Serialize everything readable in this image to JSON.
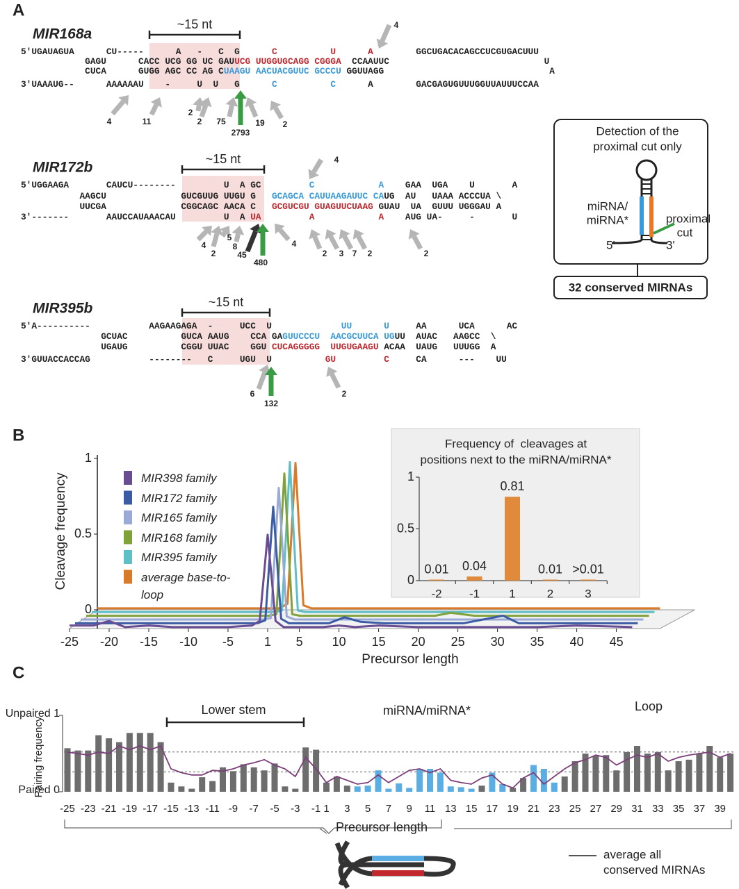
{
  "panel_labels": [
    "A",
    "B",
    "C"
  ],
  "panel_a": {
    "bracket_label": "~15 nt",
    "structures": [
      {
        "name": "MIR168a",
        "lines": [
          [
            {
              "text": "5'UGAUAGUA      CU-----      A   -   C  G      "
            },
            {
              "text": "C          U      A",
              "color": "#c1272d"
            },
            {
              "text": "        GGCUGACACAGCCUCGUGACUUU"
            }
          ],
          [
            {
              "text": "            GAGU      CACC UCG GG UC GAU"
            },
            {
              "text": "UCG UUGGUGCAGG CGGGA",
              "color": "#c1272d"
            },
            {
              "text": "  CCAAUUC                             U"
            }
          ],
          [
            {
              "text": "            CUCA      GUGG AGC CC AG C"
            },
            {
              "text": "UAAGU AACUACGUUC GCCCU",
              "color": "#3a9ad9"
            },
            {
              "text": " GGUUAGG                               A"
            }
          ],
          [
            {
              "text": "3'UAAAUG--      AAAAAAU    -     U  U   G      "
            },
            {
              "text": "C          C",
              "color": "#3a9ad9"
            },
            {
              "text": "      A        GACGAGUGUUUGGUUAUUUCCAA"
            }
          ]
        ],
        "arrows": [
          {
            "count": 4,
            "color": "#b5b5b5"
          },
          {
            "count": 4,
            "color": "#b5b5b5"
          },
          {
            "count": 11,
            "color": "#b5b5b5"
          },
          {
            "count": 2,
            "color": "#b5b5b5"
          },
          {
            "count": 2,
            "color": "#b5b5b5"
          },
          {
            "count": 75,
            "color": "#b5b5b5"
          },
          {
            "count": 2793,
            "color": "#3a9b45"
          },
          {
            "count": 19,
            "color": "#b5b5b5"
          },
          {
            "count": 2,
            "color": "#b5b5b5"
          }
        ]
      },
      {
        "name": "MIR172b",
        "lines": [
          [
            {
              "text": "5'UGGAAGA       CAUCU--------         U  A GC         "
            },
            {
              "text": "C            A",
              "color": "#3a9ad9"
            },
            {
              "text": "    GAA  UGA    U       A"
            }
          ],
          [
            {
              "text": "           AAGCU              GUCGUUG UUGU G   "
            },
            {
              "text": "GCAGCA CAUUAAGAUUC CA",
              "color": "#3a9ad9"
            },
            {
              "text": "UG  AU   UAAA ACCCUA \\"
            }
          ],
          [
            {
              "text": "           UUCGA              CGGCAGC AACA C   "
            },
            {
              "text": "GCGUCGU GUAGUUCUAAG",
              "color": "#c1272d"
            },
            {
              "text": " GUAU  UA  GUUU UGGGAU A"
            }
          ],
          [
            {
              "text": "3'-------       AAUCCAUAAACAU         U  A "
            },
            {
              "text": "UA         A            A",
              "color": "#c1272d"
            },
            {
              "text": "    AUG UA-     -       U"
            }
          ]
        ],
        "arrows": [
          {
            "count": 4,
            "color": "#b5b5b5"
          },
          {
            "count": 4,
            "color": "#b5b5b5"
          },
          {
            "count": 2,
            "color": "#b5b5b5"
          },
          {
            "count": 5,
            "color": "#b5b5b5"
          },
          {
            "count": 8,
            "color": "#b5b5b5"
          },
          {
            "count": 45,
            "color": "#333333"
          },
          {
            "count": 480,
            "color": "#3a9b45"
          },
          {
            "count": 4,
            "color": "#b5b5b5"
          },
          {
            "count": 2,
            "color": "#b5b5b5"
          },
          {
            "count": 3,
            "color": "#b5b5b5"
          },
          {
            "count": 7,
            "color": "#b5b5b5"
          },
          {
            "count": 2,
            "color": "#b5b5b5"
          },
          {
            "count": 2,
            "color": "#b5b5b5"
          }
        ]
      },
      {
        "name": "MIR395b",
        "lines": [
          [
            {
              "text": "5'A----------           AAGAAGAGA  -     UCC  U             "
            },
            {
              "text": "UU      U",
              "color": "#3a9ad9"
            },
            {
              "text": "     AA      UCA      AC"
            }
          ],
          [
            {
              "text": "               GCUAC          GUCA AAUG    CCA GA"
            },
            {
              "text": "GUUCCCU  AACGCUUCA UG",
              "color": "#3a9ad9"
            },
            {
              "text": "UU  AUAC   AAGCC  \\"
            }
          ],
          [
            {
              "text": "               UGAUG          CGGU UUAC    GGU "
            },
            {
              "text": "CUCAGGGGG  UUGUGAAGU",
              "color": "#c1272d"
            },
            {
              "text": " ACAA  UAUG   UUUGG  A"
            }
          ],
          [
            {
              "text": "3'GUUACCACCAG           --------   C     UGU  U          "
            },
            {
              "text": "GU         C",
              "color": "#c1272d"
            },
            {
              "text": "     CA      ---    UU"
            }
          ]
        ],
        "arrows": [
          {
            "count": 6,
            "color": "#b5b5b5"
          },
          {
            "count": 132,
            "color": "#3a9b45"
          },
          {
            "count": 2,
            "color": "#b5b5b5"
          }
        ]
      }
    ],
    "box": {
      "title_lines": [
        "Detection of the",
        "proximal cut only"
      ],
      "mirna_lines": [
        "miRNA/",
        "miRNA*"
      ],
      "cut_lines": [
        "proximal",
        "cut"
      ],
      "five": "5'",
      "three": "3'",
      "result": "32 conserved MIRNAs"
    }
  },
  "chart_data": [
    {
      "type": "line",
      "ylabel": "Cleavage frequency",
      "xlabel": "Precursor length",
      "x": [
        -25,
        -22,
        -20,
        -18,
        -15,
        -12,
        -10,
        -5,
        -2,
        -1,
        1,
        2,
        3,
        5,
        8,
        10,
        12,
        15,
        20,
        22,
        25,
        30,
        32,
        35,
        40,
        47
      ],
      "xlim": [
        -25,
        47
      ],
      "xticks": [
        -25,
        -20,
        -15,
        -10,
        -5,
        1,
        5,
        10,
        15,
        20,
        25,
        30,
        35,
        40,
        45
      ],
      "ylim": [
        0,
        1
      ],
      "yticks": [
        0,
        0.5,
        1
      ],
      "series": [
        {
          "name": "MIR398 family",
          "color": "#6a4c93",
          "values": [
            0.02,
            0.02,
            0.05,
            0.01,
            0.02,
            0.01,
            0.01,
            0.01,
            0.02,
            0.05,
            0.62,
            0.05,
            0.01,
            0.01,
            0.01,
            0.02,
            0.01,
            0.02,
            0.01,
            0.01,
            0.01,
            0.01,
            0.01,
            0.01,
            0.02,
            0.01
          ]
        },
        {
          "name": "MIR172 family",
          "color": "#3b5ba5",
          "values": [
            0.01,
            0.01,
            0.01,
            0.01,
            0.01,
            0.01,
            0.01,
            0.01,
            0.01,
            0.03,
            0.78,
            0.04,
            0.01,
            0.01,
            0.01,
            0.05,
            0.02,
            0.01,
            0.01,
            0.01,
            0.01,
            0.06,
            0.01,
            0.01,
            0.01,
            0.01
          ]
        },
        {
          "name": "MIR165 family",
          "color": "#9aaad6",
          "values": [
            0.01,
            0.01,
            0.01,
            0.01,
            0.01,
            0.01,
            0.01,
            0.01,
            0.01,
            0.02,
            0.88,
            0.03,
            0.01,
            0.01,
            0.01,
            0.01,
            0.01,
            0.01,
            0.01,
            0.01,
            0.01,
            0.01,
            0.01,
            0.01,
            0.01,
            0.01
          ]
        },
        {
          "name": "MIR168 family",
          "color": "#7fa23a",
          "values": [
            0.01,
            0.01,
            0.01,
            0.01,
            0.01,
            0.01,
            0.01,
            0.01,
            0.01,
            0.02,
            0.95,
            0.02,
            0.01,
            0.01,
            0.01,
            0.01,
            0.01,
            0.01,
            0.01,
            0.03,
            0.01,
            0.01,
            0.01,
            0.01,
            0.01,
            0.01
          ]
        },
        {
          "name": "MIR395 family",
          "color": "#5fbfc6",
          "values": [
            0.01,
            0.01,
            0.01,
            0.01,
            0.01,
            0.01,
            0.01,
            0.01,
            0.01,
            0.02,
            1.0,
            0.02,
            0.01,
            0.01,
            0.01,
            0.01,
            0.01,
            0.01,
            0.01,
            0.01,
            0.01,
            0.01,
            0.01,
            0.01,
            0.01,
            0.01
          ]
        },
        {
          "name": "average base-to-loop",
          "color": "#d97a2a",
          "values": [
            0.01,
            0.01,
            0.01,
            0.01,
            0.01,
            0.01,
            0.01,
            0.01,
            0.01,
            0.04,
            0.97,
            0.03,
            0.01,
            0.01,
            0.01,
            0.01,
            0.01,
            0.01,
            0.01,
            0.01,
            0.01,
            0.01,
            0.01,
            0.01,
            0.01,
            0.01
          ]
        }
      ]
    },
    {
      "type": "bar",
      "title_lines": [
        "Frequency of  cleavages at",
        "positions next to the miRNA/miRNA*"
      ],
      "categories": [
        "-2",
        "-1",
        "1",
        "2",
        "3"
      ],
      "values": [
        0.01,
        0.04,
        0.81,
        0.01,
        0.01
      ],
      "value_labels": [
        "0.01",
        "0.04",
        "0.81",
        "0.01",
        ">0.01"
      ],
      "color": "#e08a3c",
      "ylim": [
        0,
        1
      ],
      "yticks": [
        0,
        0.5,
        1
      ]
    },
    {
      "type": "bar",
      "ylabel": "Pairing frequency",
      "xlabel": "Precursor length",
      "annotations": {
        "lower_stem": "Lower stem",
        "mirna": "miRNA/miRNA*",
        "loop": "Loop"
      },
      "categories": [
        "-25",
        null,
        "-23",
        null,
        "-21",
        null,
        "-19",
        null,
        "-17",
        null,
        "-15",
        null,
        "-13",
        null,
        "-11",
        null,
        "-9",
        null,
        "-7",
        null,
        "-5",
        null,
        "-3",
        null,
        "-1",
        "1",
        null,
        "3",
        null,
        "5",
        null,
        "7",
        null,
        "9",
        null,
        "11",
        null,
        "13",
        null,
        "15",
        null,
        "17",
        null,
        "19",
        null,
        "21",
        null,
        "23",
        null,
        "25",
        null,
        "27",
        null,
        "29",
        null,
        "31",
        null,
        "33",
        null,
        "35",
        null,
        "37",
        null,
        "39",
        null
      ],
      "values": [
        0.57,
        0.54,
        0.54,
        0.74,
        0.7,
        0.65,
        0.77,
        0.77,
        0.77,
        0.65,
        0.12,
        0.07,
        0.04,
        0.19,
        0.14,
        0.32,
        0.27,
        0.36,
        0.32,
        0.28,
        0.37,
        0.07,
        0.04,
        0.58,
        0.55,
        0.12,
        0.2,
        0.08,
        0.07,
        0.08,
        0.28,
        0.04,
        0.11,
        0.05,
        0.3,
        0.3,
        0.25,
        0.07,
        0.06,
        0.04,
        0.08,
        0.25,
        0.1,
        0.05,
        0.18,
        0.35,
        0.3,
        0.12,
        0.2,
        0.4,
        0.5,
        0.47,
        0.48,
        0.28,
        0.52,
        0.6,
        0.5,
        0.52,
        0.28,
        0.4,
        0.42,
        0.5,
        0.6,
        0.45,
        0.5
      ],
      "bar_colors": [
        "#6d6d6d",
        "#6d6d6d",
        "#6d6d6d",
        "#6d6d6d",
        "#6d6d6d",
        "#6d6d6d",
        "#6d6d6d",
        "#6d6d6d",
        "#6d6d6d",
        "#6d6d6d",
        "#6d6d6d",
        "#6d6d6d",
        "#6d6d6d",
        "#6d6d6d",
        "#6d6d6d",
        "#6d6d6d",
        "#6d6d6d",
        "#6d6d6d",
        "#6d6d6d",
        "#6d6d6d",
        "#6d6d6d",
        "#6d6d6d",
        "#6d6d6d",
        "#6d6d6d",
        "#6d6d6d",
        "#6d6d6d",
        "#6d6d6d",
        "#6d6d6d",
        "#5aaee3",
        "#5aaee3",
        "#5aaee3",
        "#5aaee3",
        "#5aaee3",
        "#5aaee3",
        "#5aaee3",
        "#5aaee3",
        "#5aaee3",
        "#5aaee3",
        "#5aaee3",
        "#5aaee3",
        "#6d6d6d",
        "#5aaee3",
        "#5aaee3",
        "#6d6d6d",
        "#6d6d6d",
        "#5aaee3",
        "#5aaee3",
        "#5aaee3",
        "#6d6d6d",
        "#6d6d6d",
        "#6d6d6d",
        "#6d6d6d",
        "#6d6d6d",
        "#6d6d6d",
        "#6d6d6d",
        "#6d6d6d",
        "#6d6d6d",
        "#6d6d6d",
        "#6d6d6d",
        "#6d6d6d",
        "#6d6d6d",
        "#6d6d6d",
        "#6d6d6d",
        "#6d6d6d",
        "#6d6d6d"
      ],
      "ylim": [
        0,
        1
      ],
      "yticks": [
        {
          "value": 0,
          "label": "Paired 0"
        },
        {
          "value": 1,
          "label": "Unpaired 1"
        }
      ],
      "reference_lines": [
        0.52,
        0.26
      ],
      "series": [
        {
          "name": "average all conserved MIRNAs",
          "color": "#7b3f7a",
          "values": [
            0.52,
            0.5,
            0.48,
            0.52,
            0.5,
            0.6,
            0.55,
            0.6,
            0.55,
            0.6,
            0.3,
            0.25,
            0.22,
            0.22,
            0.28,
            0.27,
            0.3,
            0.35,
            0.38,
            0.42,
            0.35,
            0.3,
            0.2,
            0.45,
            0.3,
            0.12,
            0.2,
            0.15,
            0.1,
            0.12,
            0.22,
            0.12,
            0.2,
            0.28,
            0.3,
            0.25,
            0.3,
            0.15,
            0.12,
            0.1,
            0.18,
            0.22,
            0.1,
            0.05,
            0.18,
            0.25,
            0.1,
            0.2,
            0.3,
            0.38,
            0.42,
            0.48,
            0.45,
            0.35,
            0.42,
            0.48,
            0.45,
            0.5,
            0.4,
            0.45,
            0.48,
            0.5,
            0.52,
            0.45,
            0.5
          ]
        }
      ]
    }
  ]
}
